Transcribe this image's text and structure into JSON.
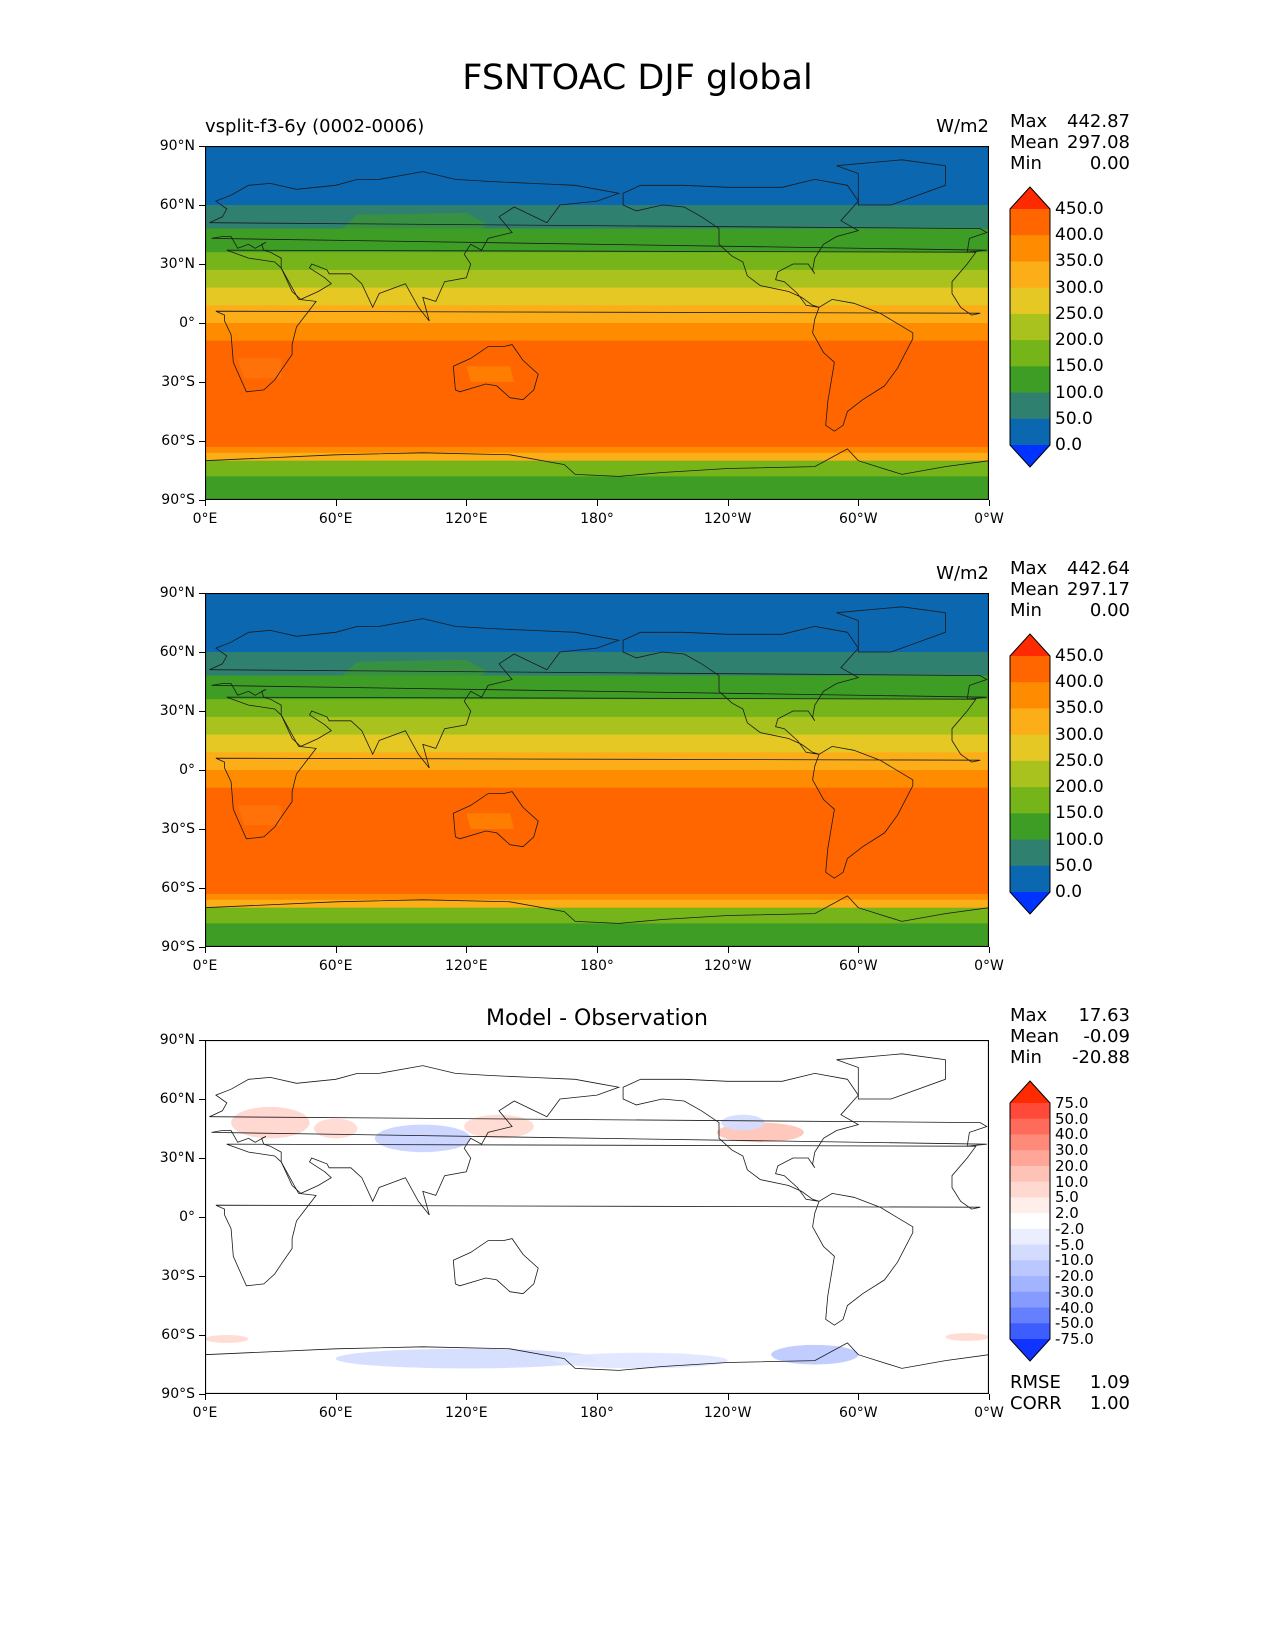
{
  "title": "FSNTOAC DJF global",
  "panels": [
    {
      "left_label": "vsplit-f3-6y (0002-0006)",
      "center_label": "",
      "units": "W/m2",
      "stats": [
        {
          "name": "Max",
          "value": "442.87"
        },
        {
          "name": "Mean",
          "value": "297.08"
        },
        {
          "name": "Min",
          "value": "0.00"
        }
      ],
      "colorbar": {
        "labels": [
          "450.0",
          "400.0",
          "350.0",
          "300.0",
          "250.0",
          "200.0",
          "150.0",
          "100.0",
          "50.0",
          "0.0"
        ],
        "colors": [
          "#ff2a00",
          "#ff6600",
          "#ff8c00",
          "#fbae18",
          "#e5c823",
          "#aac21d",
          "#76b51a",
          "#3e9d24",
          "#30806f",
          "#0a67b0",
          "#0033ff"
        ]
      }
    },
    {
      "left_label": "",
      "center_label": "",
      "units": "W/m2",
      "stats": [
        {
          "name": "Max",
          "value": "442.64"
        },
        {
          "name": "Mean",
          "value": "297.17"
        },
        {
          "name": "Min",
          "value": "0.00"
        }
      ],
      "colorbar": {
        "labels": [
          "450.0",
          "400.0",
          "350.0",
          "300.0",
          "250.0",
          "200.0",
          "150.0",
          "100.0",
          "50.0",
          "0.0"
        ],
        "colors": [
          "#ff2a00",
          "#ff6600",
          "#ff8c00",
          "#fbae18",
          "#e5c823",
          "#aac21d",
          "#76b51a",
          "#3e9d24",
          "#30806f",
          "#0a67b0",
          "#0033ff"
        ]
      }
    },
    {
      "left_label": "",
      "center_label": "Model - Observation",
      "units": "",
      "stats": [
        {
          "name": "Max",
          "value": "17.63"
        },
        {
          "name": "Mean",
          "value": "-0.09"
        },
        {
          "name": "Min",
          "value": "-20.88"
        }
      ],
      "bottom_stats": [
        {
          "name": "RMSE",
          "value": "1.09"
        },
        {
          "name": "CORR",
          "value": "1.00"
        }
      ],
      "colorbar": {
        "labels": [
          "75.0",
          "50.0",
          "40.0",
          "30.0",
          "20.0",
          "10.0",
          "5.0",
          "2.0",
          "-2.0",
          "-5.0",
          "-10.0",
          "-20.0",
          "-30.0",
          "-40.0",
          "-50.0",
          "-75.0"
        ],
        "colors": [
          "#ff2a00",
          "#ff4a3a",
          "#ff6b5a",
          "#ff8a7a",
          "#ffa698",
          "#ffc2b6",
          "#ffd9d0",
          "#ffeeea",
          "#ffffff",
          "#eaeeff",
          "#d3dcff",
          "#bbc8ff",
          "#a2b3ff",
          "#869bff",
          "#6580ff",
          "#3d5dff",
          "#1133ff"
        ]
      }
    }
  ],
  "lat_ticks": [
    "90°N",
    "60°N",
    "30°N",
    "0°",
    "30°S",
    "60°S",
    "90°S"
  ],
  "lon_ticks": [
    "0°E",
    "60°E",
    "120°E",
    "180°",
    "120°W",
    "60°W",
    "0°W"
  ],
  "chart_data": {
    "type": "heatmap",
    "title": "FSNTOAC DJF global",
    "xlabel": "",
    "ylabel": "",
    "x_range": [
      0,
      360
    ],
    "y_range": [
      -90,
      90
    ],
    "series_bands_field_panels": {
      "lat_band_edges": [
        90,
        84,
        75,
        60,
        48,
        36,
        27,
        18,
        9,
        0,
        -9,
        -57,
        -63,
        -66,
        -70,
        -78,
        -90
      ],
      "panel1_values": [
        0,
        25,
        25,
        75,
        125,
        175,
        225,
        275,
        325,
        375,
        425,
        425,
        375,
        325,
        175,
        125
      ],
      "panel2_values": [
        0,
        25,
        25,
        75,
        125,
        175,
        225,
        275,
        325,
        375,
        425,
        425,
        375,
        325,
        175,
        125
      ]
    },
    "difference_panel": {
      "max": 17.63,
      "mean": -0.09,
      "min": -20.88,
      "rmse": 1.09,
      "corr": 1.0
    }
  }
}
